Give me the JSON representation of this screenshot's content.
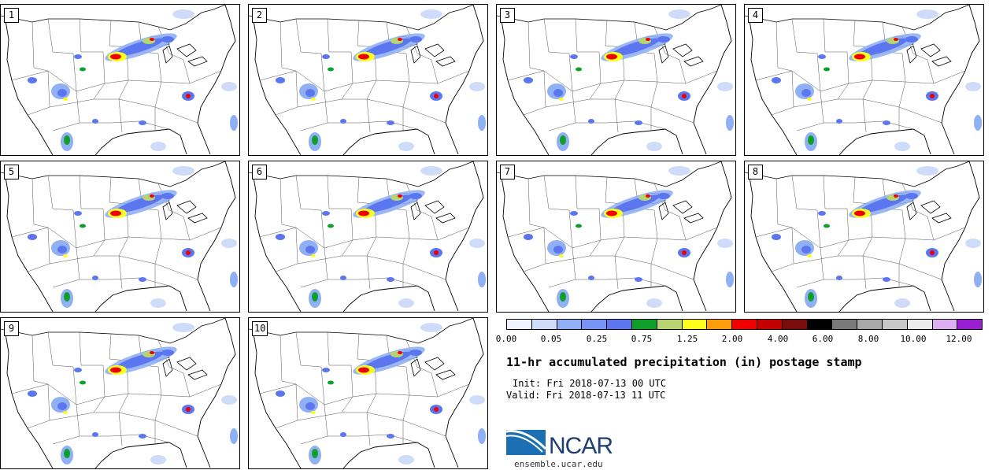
{
  "panels": [
    "1",
    "2",
    "3",
    "4",
    "5",
    "6",
    "7",
    "8",
    "9",
    "10"
  ],
  "colorbar": {
    "colors": [
      "#eef3fd",
      "#cfdcf9",
      "#8fb0f5",
      "#7594f3",
      "#5b76ef",
      "#0ea02a",
      "#b6d472",
      "#ffff1e",
      "#ff9d0d",
      "#f00000",
      "#c40000",
      "#7a0c0c",
      "#000000",
      "#7a7a7a",
      "#a8a8a8",
      "#c8c8c8",
      "#ececec",
      "#dcb0f0",
      "#9a1ed4"
    ],
    "tick_labels": [
      "0.00",
      "0.05",
      "0.25",
      "0.75",
      "1.25",
      "2.00",
      "4.00",
      "6.00",
      "8.00",
      "10.00",
      "12.00"
    ]
  },
  "title": "11-hr accumulated precipitation (in) postage stamp",
  "init": "Init: Fri 2018-07-13 00 UTC",
  "valid": "Valid: Fri 2018-07-13 11 UTC",
  "logo": {
    "text": "NCAR",
    "url": "ensemble.ucar.edu"
  }
}
